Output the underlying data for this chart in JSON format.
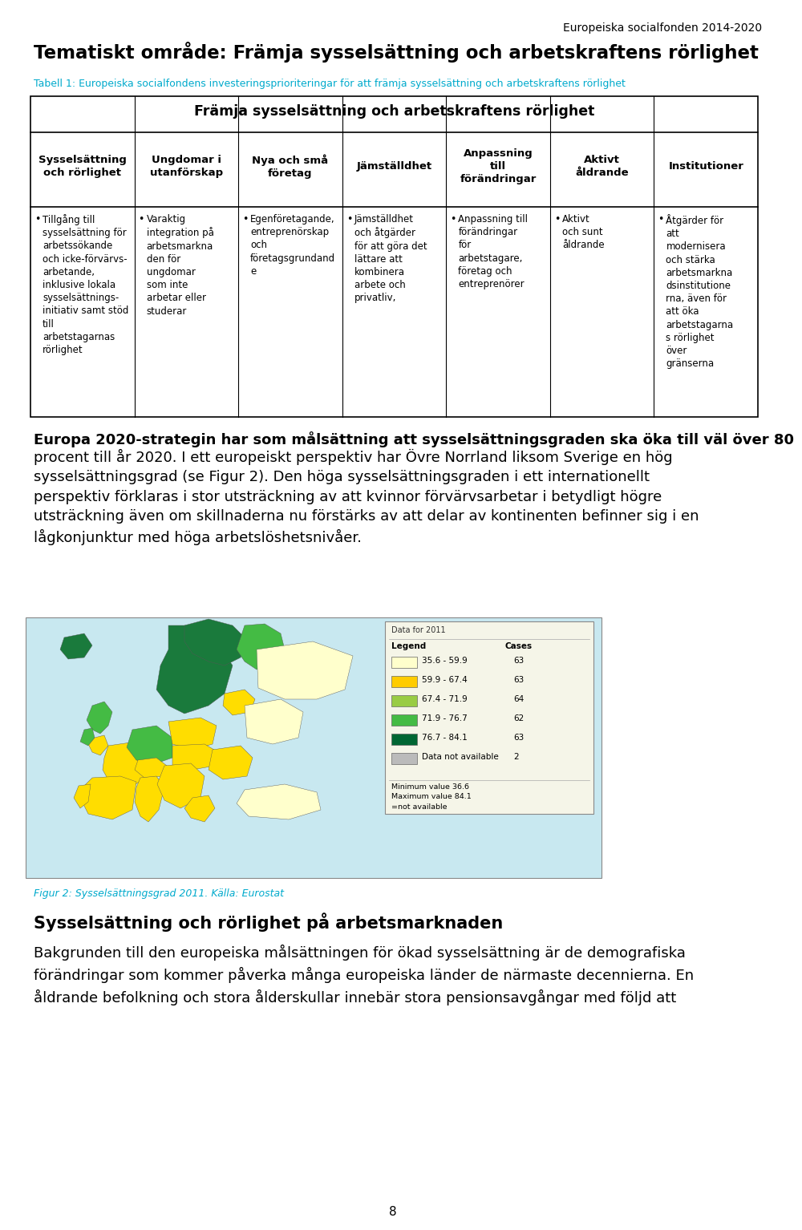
{
  "header_right": "Europeiska socialfonden 2014-2020",
  "main_title": "Tematiskt område: Främja sysselsättning och arbetskraftens rörlighet",
  "subtitle": "Tabell 1: Europeiska socialfondens investeringsprioriteringar för att främja sysselsättning och arbetskraftens rörlighet",
  "table_header_center": "Främja sysselsättning och arbetskraftens rörlighet",
  "col_headers": [
    "Sysselsättning\noch rörlighet",
    "Ungdomar i\nutanförskap",
    "Nya och små\nföretag",
    "Jämställdhet",
    "Anpassning\ntill\nförändringar",
    "Aktivt\nåldrande",
    "Institutioner"
  ],
  "col_contents": [
    "Tillgång till\nsysselsättning för\narbetssökande\noch icke-förvärvs-\narbetande,\ninklusive lokala\nsysselsättnings-\ninitiativ samt stöd\ntill\narbetstagarnas\nrörlighet",
    "Varaktig\nintegration på\narbetsmarkna\nden för\nungdomar\nsom inte\narbetar eller\nstuderar",
    "Egenföretagande,\nentreprenörskap\noch\nföretagsgrundand\ne",
    "Jämställdhet\noch åtgärder\nför att göra det\nlättare att\nkombinera\narbete och\nprivatliv,",
    "Anpassning till\nförändringar\nför\narbetstagare,\nföretag och\nentreprenörer",
    "Aktivt\noch sunt\nåldrande",
    "Åtgärder för\natt\nmodernisera\noch stärka\narbetsmarkna\ndsinstitutione\nrna, även för\natt öka\narbetstagarna\ns rörlighet\növer\ngränserna"
  ],
  "body_text_bold": "Europa 2020-strategin har som målsättning att sysselsättningsgraden ska öka till väl över 80",
  "body_text_normal": "procent till år 2020. I ett europeiskt perspektiv har Övre Norrland liksom Sverige en hög\nsysselsättningsgrad (se Figur 2). Den höga sysselsättningsgraden i ett internationellt\nperspektiv förklaras i stor utsträckning av att kvinnor förvärvsarbetar i betydligt högre\nutsträckning även om skillnaderna nu förstärks av att delar av kontinenten befinner sig i en\nlågkonjunktur med höga arbetslöshetsnivåer.",
  "figure_caption": "Figur 2: Sysselsättningsgrad 2011. Källa: Eurostat",
  "section_title": "Sysselsättning och rörlighet på arbetsmarknaden",
  "body_text2_lines": [
    "Bakgrunden till den europeiska målsättningen för ökad sysselsättning är de demografiska",
    "förändringar som kommer påverka många europeiska länder de närmaste decennierna. En",
    "åldrande befolkning och stora ålderskullar innebär stora pensionsavgångar med följd att"
  ],
  "page_number": "8",
  "legend_items": [
    {
      "color": "#FFFFCC",
      "label": "35.6 - 59.9",
      "cases": "63"
    },
    {
      "color": "#FFCC00",
      "label": "59.9 - 67.4",
      "cases": "63"
    },
    {
      "color": "#99CC44",
      "label": "67.4 - 71.9",
      "cases": "64"
    },
    {
      "color": "#44BB44",
      "label": "71.9 - 76.7",
      "cases": "62"
    },
    {
      "color": "#006633",
      "label": "76.7 - 84.1",
      "cases": "63"
    },
    {
      "color": "#BBBBBB",
      "label": "Data not available",
      "cases": "2"
    }
  ]
}
